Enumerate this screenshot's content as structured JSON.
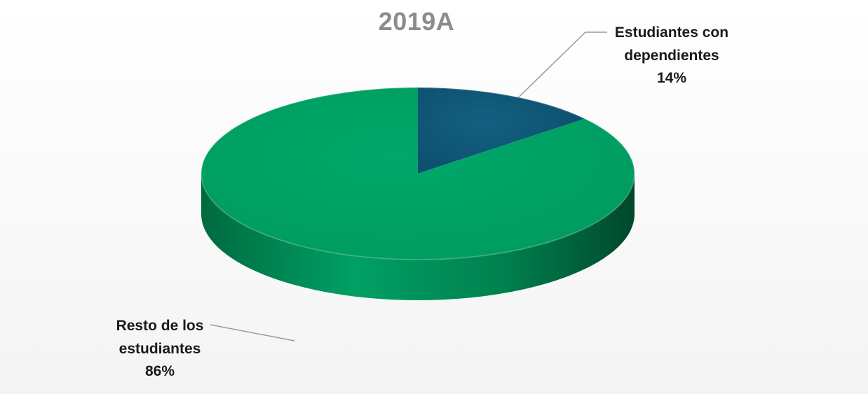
{
  "chart_data": {
    "type": "pie",
    "title": "2019A",
    "slices": [
      {
        "label_lines": [
          "Estudiantes con",
          "dependientes"
        ],
        "value": 14,
        "value_label": "14%",
        "color": "#0f5a7a"
      },
      {
        "label_lines": [
          "Resto de los",
          "estudiantes"
        ],
        "value": 86,
        "value_label": "86%",
        "color": "#00a265"
      }
    ],
    "style": "3d"
  }
}
